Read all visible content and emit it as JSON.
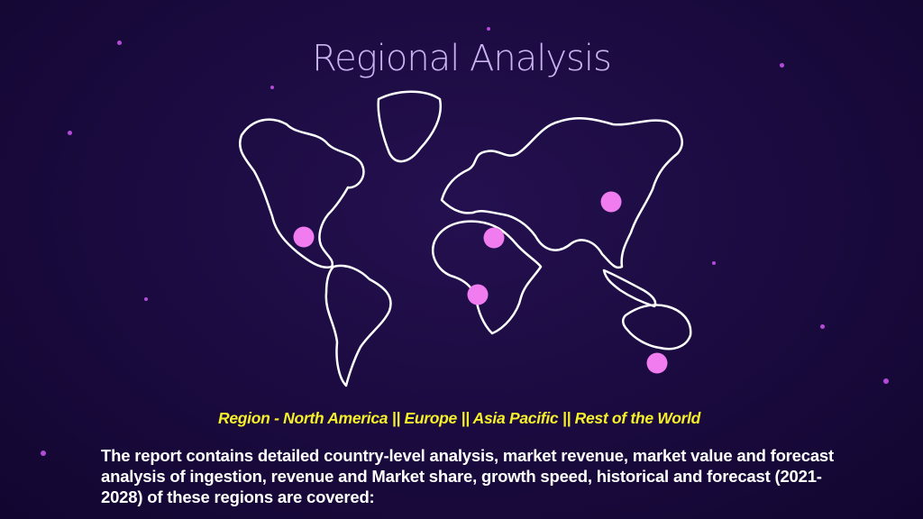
{
  "title": "Regional Analysis",
  "regions_line": "Region - North America || Europe || Asia Pacific || Rest of the World",
  "description": "The report contains detailed country-level analysis, market revenue, market value and forecast analysis of ingestion, revenue and Market share, growth speed, historical and forecast (2021-2028) of these regions are covered:",
  "colors": {
    "background": "#1a0a3e",
    "title": "#c9b3ee",
    "regions_text": "#f5f02a",
    "map_pin": "#f07cf0",
    "map_outline": "#ffffff"
  },
  "map_pins": [
    "north-america",
    "europe",
    "asia-pacific",
    "africa",
    "australia"
  ]
}
